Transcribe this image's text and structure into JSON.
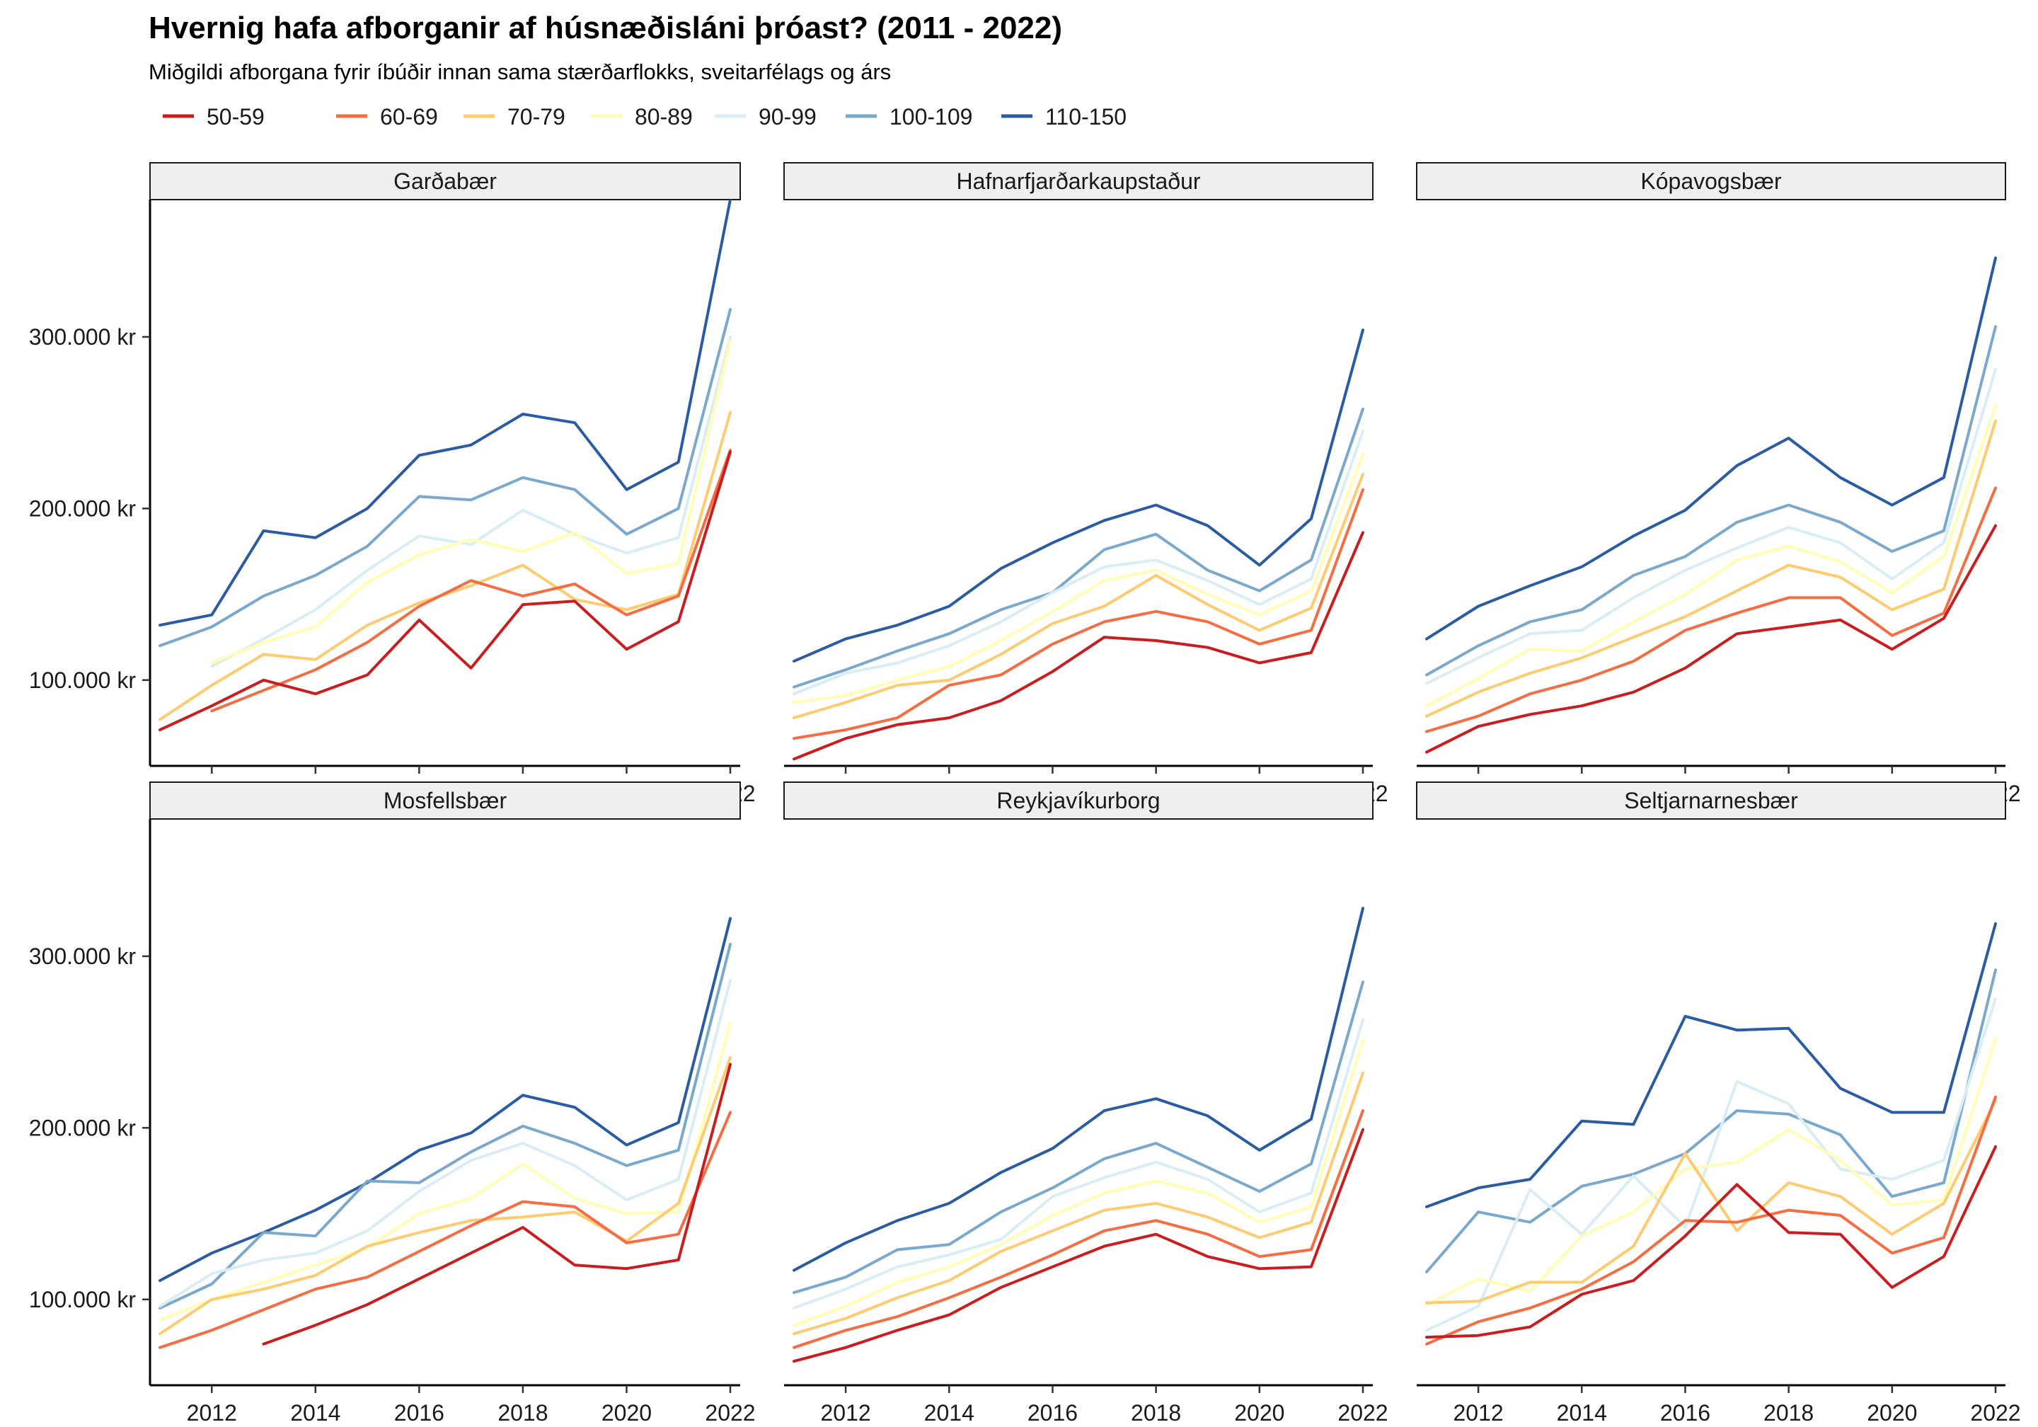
{
  "chart_data": {
    "type": "line",
    "title": "Hvernig hafa afborganir af húsnæðisláni þróast? (2011 - 2022)",
    "subtitle": "Miðgildi afborgana fyrir íbúðir innan sama stærðarflokks, sveitarfélags og árs",
    "xlim": [
      2011,
      2022
    ],
    "ylim": [
      50000,
      380000
    ],
    "x_ticks": [
      2012,
      2014,
      2016,
      2018,
      2020,
      2022
    ],
    "y_ticks": [
      {
        "value": 100000,
        "label": "100.000 kr"
      },
      {
        "value": 200000,
        "label": "200.000 kr"
      },
      {
        "value": 300000,
        "label": "300.000 kr"
      }
    ],
    "legend_position": "top",
    "series_meta": [
      {
        "name": "50-59",
        "color": "#ca1d20"
      },
      {
        "name": "60-69",
        "color": "#f46d43"
      },
      {
        "name": "70-79",
        "color": "#fdcb70"
      },
      {
        "name": "80-89",
        "color": "#fffeb4"
      },
      {
        "name": "90-99",
        "color": "#d9edf4"
      },
      {
        "name": "100-109",
        "color": "#7aa9cd"
      },
      {
        "name": "110-150",
        "color": "#2b5ca3"
      }
    ],
    "x": [
      2011,
      2012,
      2013,
      2014,
      2015,
      2016,
      2017,
      2018,
      2019,
      2020,
      2021,
      2022
    ],
    "panels": [
      {
        "name": "Garðabær",
        "series": [
          {
            "name": "50-59",
            "values": [
              71000,
              85000,
              100000,
              92000,
              103000,
              135000,
              107000,
              144000,
              146000,
              118000,
              134000,
              233000
            ]
          },
          {
            "name": "60-69",
            "values": [
              null,
              82000,
              94000,
              106000,
              122000,
              143000,
              158000,
              149000,
              156000,
              138000,
              149000,
              234000
            ]
          },
          {
            "name": "70-79",
            "values": [
              77000,
              97000,
              115000,
              112000,
              132000,
              145000,
              155000,
              167000,
              147000,
              141000,
              150000,
              256000
            ]
          },
          {
            "name": "80-89",
            "values": [
              null,
              110000,
              122000,
              131000,
              157000,
              173000,
              182000,
              175000,
              186000,
              162000,
              168000,
              298000
            ]
          },
          {
            "name": "90-99",
            "values": [
              null,
              108000,
              124000,
              141000,
              164000,
              184000,
              179000,
              199000,
              185000,
              174000,
              183000,
              300000
            ]
          },
          {
            "name": "100-109",
            "values": [
              120000,
              131000,
              149000,
              161000,
              178000,
              207000,
              205000,
              218000,
              211000,
              185000,
              200000,
              316000
            ]
          },
          {
            "name": "110-150",
            "values": [
              132000,
              138000,
              187000,
              183000,
              200000,
              231000,
              237000,
              255000,
              250000,
              211000,
              227000,
              380000
            ]
          }
        ]
      },
      {
        "name": "Hafnarfjarðarkaupstaður",
        "series": [
          {
            "name": "50-59",
            "values": [
              54000,
              66000,
              74000,
              78000,
              88000,
              105000,
              125000,
              123000,
              119000,
              110000,
              116000,
              186000
            ]
          },
          {
            "name": "60-69",
            "values": [
              66000,
              71000,
              78000,
              97000,
              103000,
              121000,
              134000,
              140000,
              134000,
              121000,
              129000,
              211000
            ]
          },
          {
            "name": "70-79",
            "values": [
              78000,
              87000,
              97000,
              100000,
              115000,
              133000,
              143000,
              161000,
              144000,
              129000,
              142000,
              220000
            ]
          },
          {
            "name": "80-89",
            "values": [
              87000,
              91000,
              100000,
              108000,
              123000,
              140000,
              158000,
              164000,
              150000,
              138000,
              152000,
              232000
            ]
          },
          {
            "name": "90-99",
            "values": [
              92000,
              104000,
              110000,
              120000,
              134000,
              151000,
              166000,
              170000,
              158000,
              144000,
              159000,
              245000
            ]
          },
          {
            "name": "100-109",
            "values": [
              96000,
              106000,
              117000,
              127000,
              141000,
              151000,
              176000,
              185000,
              164000,
              152000,
              170000,
              258000
            ]
          },
          {
            "name": "110-150",
            "values": [
              111000,
              124000,
              132000,
              143000,
              165000,
              180000,
              193000,
              202000,
              190000,
              167000,
              194000,
              304000
            ]
          }
        ]
      },
      {
        "name": "Kópavogsbær",
        "series": [
          {
            "name": "50-59",
            "values": [
              58000,
              73000,
              80000,
              85000,
              93000,
              107000,
              127000,
              131000,
              135000,
              118000,
              136000,
              190000
            ]
          },
          {
            "name": "60-69",
            "values": [
              70000,
              79000,
              92000,
              100000,
              111000,
              129000,
              139000,
              148000,
              148000,
              126000,
              139000,
              212000
            ]
          },
          {
            "name": "70-79",
            "values": [
              79000,
              93000,
              104000,
              113000,
              125000,
              137000,
              152000,
              167000,
              160000,
              141000,
              153000,
              251000
            ]
          },
          {
            "name": "80-89",
            "values": [
              85000,
              101000,
              118000,
              117000,
              134000,
              150000,
              170000,
              178000,
              169000,
              151000,
              172000,
              260000
            ]
          },
          {
            "name": "90-99",
            "values": [
              98000,
              113000,
              127000,
              129000,
              148000,
              164000,
              177000,
              189000,
              180000,
              159000,
              180000,
              281000
            ]
          },
          {
            "name": "100-109",
            "values": [
              103000,
              120000,
              134000,
              141000,
              161000,
              172000,
              192000,
              202000,
              192000,
              175000,
              187000,
              306000
            ]
          },
          {
            "name": "110-150",
            "values": [
              124000,
              143000,
              155000,
              166000,
              184000,
              199000,
              225000,
              241000,
              218000,
              202000,
              218000,
              346000
            ]
          }
        ]
      },
      {
        "name": "Mosfellsbær",
        "series": [
          {
            "name": "50-59",
            "values": [
              null,
              null,
              74000,
              85000,
              97000,
              112000,
              127000,
              142000,
              120000,
              118000,
              123000,
              237000
            ]
          },
          {
            "name": "60-69",
            "values": [
              72000,
              82000,
              94000,
              106000,
              113000,
              128000,
              143000,
              157000,
              154000,
              133000,
              138000,
              209000
            ]
          },
          {
            "name": "70-79",
            "values": [
              80000,
              100000,
              106000,
              114000,
              131000,
              139000,
              146000,
              148000,
              151000,
              134000,
              156000,
              241000
            ]
          },
          {
            "name": "80-89",
            "values": [
              88000,
              100000,
              110000,
              120000,
              130000,
              150000,
              159000,
              179000,
              159000,
              150000,
              151000,
              261000
            ]
          },
          {
            "name": "90-99",
            "values": [
              96000,
              115000,
              123000,
              127000,
              140000,
              163000,
              181000,
              191000,
              178000,
              158000,
              170000,
              286000
            ]
          },
          {
            "name": "100-109",
            "values": [
              95000,
              109000,
              139000,
              137000,
              169000,
              168000,
              186000,
              201000,
              191000,
              178000,
              187000,
              307000
            ]
          },
          {
            "name": "110-150",
            "values": [
              111000,
              127000,
              139000,
              152000,
              168000,
              187000,
              197000,
              219000,
              212000,
              190000,
              203000,
              322000
            ]
          }
        ]
      },
      {
        "name": "Reykjavíkurborg",
        "series": [
          {
            "name": "50-59",
            "values": [
              64000,
              72000,
              82000,
              91000,
              107000,
              119000,
              131000,
              138000,
              125000,
              118000,
              119000,
              199000
            ]
          },
          {
            "name": "60-69",
            "values": [
              72000,
              82000,
              90000,
              101000,
              113000,
              126000,
              140000,
              146000,
              138000,
              125000,
              129000,
              210000
            ]
          },
          {
            "name": "70-79",
            "values": [
              80000,
              89000,
              101000,
              111000,
              128000,
              140000,
              152000,
              156000,
              148000,
              136000,
              145000,
              232000
            ]
          },
          {
            "name": "80-89",
            "values": [
              85000,
              96000,
              110000,
              119000,
              132000,
              149000,
              162000,
              169000,
              162000,
              145000,
              154000,
              251000
            ]
          },
          {
            "name": "90-99",
            "values": [
              95000,
              106000,
              119000,
              126000,
              135000,
              160000,
              171000,
              180000,
              170000,
              151000,
              162000,
              263000
            ]
          },
          {
            "name": "100-109",
            "values": [
              104000,
              113000,
              129000,
              132000,
              151000,
              165000,
              182000,
              191000,
              177000,
              163000,
              179000,
              285000
            ]
          },
          {
            "name": "110-150",
            "values": [
              117000,
              133000,
              146000,
              156000,
              174000,
              188000,
              210000,
              217000,
              207000,
              187000,
              205000,
              328000
            ]
          }
        ]
      },
      {
        "name": "Seltjarnarnesbær",
        "series": [
          {
            "name": "50-59",
            "values": [
              78000,
              79000,
              84000,
              103000,
              111000,
              137000,
              167000,
              139000,
              138000,
              107000,
              125000,
              189000
            ]
          },
          {
            "name": "60-69",
            "values": [
              74000,
              87000,
              95000,
              106000,
              122000,
              146000,
              145000,
              152000,
              149000,
              127000,
              136000,
              218000
            ]
          },
          {
            "name": "70-79",
            "values": [
              98000,
              99000,
              110000,
              110000,
              131000,
              185000,
              140000,
              168000,
              160000,
              138000,
              156000,
              216000
            ]
          },
          {
            "name": "80-89",
            "values": [
              97000,
              112000,
              105000,
              137000,
              151000,
              176000,
              180000,
              199000,
              181000,
              155000,
              158000,
              252000
            ]
          },
          {
            "name": "90-99",
            "values": [
              82000,
              96000,
              164000,
              138000,
              172000,
              142000,
              227000,
              214000,
              176000,
              170000,
              181000,
              275000
            ]
          },
          {
            "name": "100-109",
            "values": [
              116000,
              151000,
              145000,
              166000,
              173000,
              185000,
              210000,
              208000,
              196000,
              160000,
              168000,
              292000
            ]
          },
          {
            "name": "110-150",
            "values": [
              154000,
              165000,
              170000,
              204000,
              202000,
              265000,
              257000,
              258000,
              223000,
              209000,
              209000,
              319000
            ]
          }
        ]
      }
    ]
  }
}
